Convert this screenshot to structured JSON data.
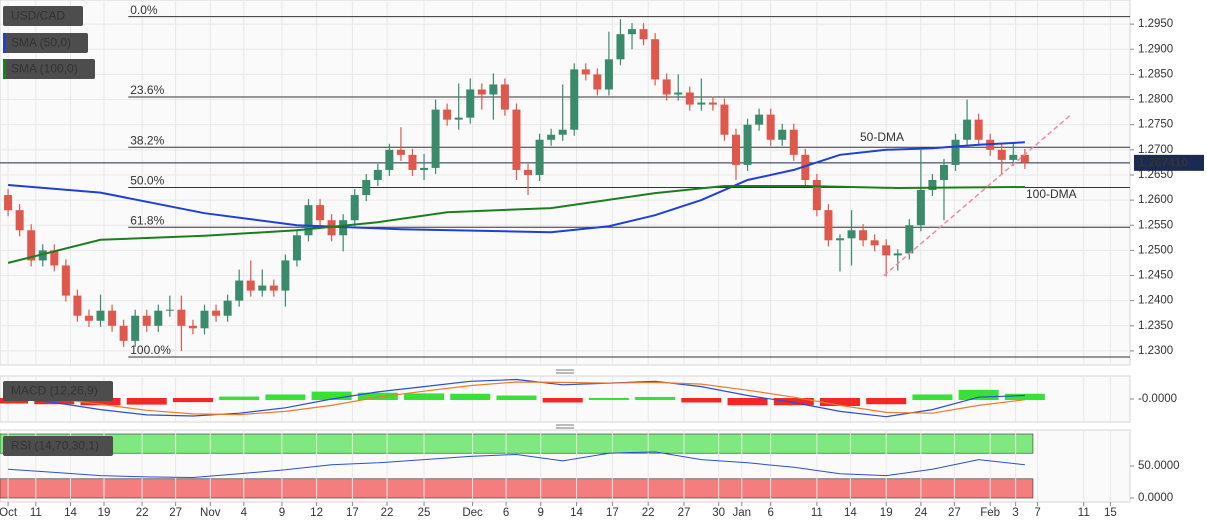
{
  "chart_data": [
    {
      "type": "candlestick",
      "title": "USD/CAD",
      "up_color": "#3a8a6c",
      "down_color": "#e0574c",
      "xlim": [
        -0.7,
        97.1
      ],
      "ylim": [
        1.2272,
        1.2998
      ],
      "yticks": [
        {
          "value": 1.23,
          "label": "1.2300"
        },
        {
          "value": 1.235,
          "label": "1.2350"
        },
        {
          "value": 1.24,
          "label": "1.2400"
        },
        {
          "value": 1.245,
          "label": "1.2450"
        },
        {
          "value": 1.25,
          "label": "1.2500"
        },
        {
          "value": 1.255,
          "label": "1.2550"
        },
        {
          "value": 1.26,
          "label": "1.2600"
        },
        {
          "value": 1.265,
          "label": "1.2650"
        },
        {
          "value": 1.27,
          "label": "1.2700"
        },
        {
          "value": 1.275,
          "label": "1.2750"
        },
        {
          "value": 1.28,
          "label": "1.2800"
        },
        {
          "value": 1.285,
          "label": "1.2850"
        },
        {
          "value": 1.29,
          "label": "1.2900"
        },
        {
          "value": 1.295,
          "label": "1.2950"
        }
      ],
      "ohlc": [
        [
          1.261,
          1.2622,
          1.2568,
          1.258
        ],
        [
          1.258,
          1.2592,
          1.2528,
          1.254
        ],
        [
          1.254,
          1.2552,
          1.2468,
          1.248
        ],
        [
          1.248,
          1.2512,
          1.2468,
          1.25
        ],
        [
          1.25,
          1.2512,
          1.2458,
          1.247
        ],
        [
          1.247,
          1.2482,
          1.2398,
          1.241
        ],
        [
          1.241,
          1.2422,
          1.2358,
          1.237
        ],
        [
          1.237,
          1.2382,
          1.2348,
          1.236
        ],
        [
          1.236,
          1.2412,
          1.2348,
          1.238
        ],
        [
          1.238,
          1.2392,
          1.2338,
          1.235
        ],
        [
          1.235,
          1.2362,
          1.2308,
          1.232
        ],
        [
          1.232,
          1.2382,
          1.2308,
          1.237
        ],
        [
          1.237,
          1.2382,
          1.2338,
          1.235
        ],
        [
          1.235,
          1.2392,
          1.2338,
          1.238
        ],
        [
          1.238,
          1.241,
          1.2368,
          1.2382
        ],
        [
          1.2382,
          1.241,
          1.23,
          1.235
        ],
        [
          1.235,
          1.2362,
          1.2333,
          1.2345
        ],
        [
          1.2345,
          1.2392,
          1.2333,
          1.238
        ],
        [
          1.238,
          1.2392,
          1.2358,
          1.237
        ],
        [
          1.237,
          1.2412,
          1.2358,
          1.24
        ],
        [
          1.24,
          1.2462,
          1.2388,
          1.244
        ],
        [
          1.244,
          1.248,
          1.2408,
          1.242
        ],
        [
          1.242,
          1.2462,
          1.2408,
          1.243
        ],
        [
          1.243,
          1.2442,
          1.2408,
          1.242
        ],
        [
          1.242,
          1.2492,
          1.2388,
          1.248
        ],
        [
          1.248,
          1.2542,
          1.2468,
          1.253
        ],
        [
          1.253,
          1.2602,
          1.2518,
          1.259
        ],
        [
          1.259,
          1.2602,
          1.2548,
          1.256
        ],
        [
          1.256,
          1.2572,
          1.2518,
          1.253
        ],
        [
          1.253,
          1.2572,
          1.2498,
          1.256
        ],
        [
          1.256,
          1.2622,
          1.2548,
          1.261
        ],
        [
          1.261,
          1.2652,
          1.2598,
          1.264
        ],
        [
          1.264,
          1.2672,
          1.2628,
          1.266
        ],
        [
          1.266,
          1.2712,
          1.2648,
          1.27
        ],
        [
          1.27,
          1.2745,
          1.2678,
          1.269
        ],
        [
          1.269,
          1.2702,
          1.2648,
          1.266
        ],
        [
          1.266,
          1.2692,
          1.264,
          1.2664
        ],
        [
          1.2664,
          1.28,
          1.2652,
          1.278
        ],
        [
          1.278,
          1.2792,
          1.2748,
          1.276
        ],
        [
          1.276,
          1.2832,
          1.274,
          1.2764
        ],
        [
          1.2764,
          1.2842,
          1.2752,
          1.282
        ],
        [
          1.282,
          1.2832,
          1.278,
          1.281
        ],
        [
          1.281,
          1.2852,
          1.276,
          1.283
        ],
        [
          1.283,
          1.2842,
          1.2768,
          1.278
        ],
        [
          1.278,
          1.2792,
          1.264,
          1.266
        ],
        [
          1.266,
          1.2672,
          1.261,
          1.265
        ],
        [
          1.265,
          1.2732,
          1.2638,
          1.272
        ],
        [
          1.272,
          1.2742,
          1.2708,
          1.273
        ],
        [
          1.273,
          1.283,
          1.2718,
          1.274
        ],
        [
          1.274,
          1.2872,
          1.2728,
          1.286
        ],
        [
          1.286,
          1.2872,
          1.2838,
          1.285
        ],
        [
          1.285,
          1.2862,
          1.2808,
          1.282
        ],
        [
          1.282,
          1.2935,
          1.2808,
          1.288
        ],
        [
          1.288,
          1.296,
          1.2868,
          1.293
        ],
        [
          1.293,
          1.2952,
          1.29,
          1.294
        ],
        [
          1.294,
          1.2952,
          1.2908,
          1.292
        ],
        [
          1.292,
          1.2932,
          1.2828,
          1.284
        ],
        [
          1.284,
          1.2852,
          1.2798,
          1.281
        ],
        [
          1.281,
          1.285,
          1.2798,
          1.2814
        ],
        [
          1.2814,
          1.2826,
          1.2778,
          1.279
        ],
        [
          1.279,
          1.2842,
          1.2778,
          1.2794
        ],
        [
          1.2794,
          1.2806,
          1.2778,
          1.279
        ],
        [
          1.279,
          1.2802,
          1.2718,
          1.273
        ],
        [
          1.273,
          1.2742,
          1.264,
          1.267
        ],
        [
          1.267,
          1.2762,
          1.2658,
          1.275
        ],
        [
          1.275,
          1.2782,
          1.2738,
          1.277
        ],
        [
          1.277,
          1.2782,
          1.2708,
          1.272
        ],
        [
          1.272,
          1.2752,
          1.2708,
          1.274
        ],
        [
          1.274,
          1.2752,
          1.2678,
          1.269
        ],
        [
          1.269,
          1.2702,
          1.2628,
          1.264
        ],
        [
          1.264,
          1.2652,
          1.2568,
          1.258
        ],
        [
          1.258,
          1.2592,
          1.2508,
          1.252
        ],
        [
          1.252,
          1.2532,
          1.2458,
          1.2524
        ],
        [
          1.2524,
          1.258,
          1.247,
          1.254
        ],
        [
          1.254,
          1.2552,
          1.2508,
          1.252
        ],
        [
          1.252,
          1.2532,
          1.2498,
          1.251
        ],
        [
          1.251,
          1.2522,
          1.2448,
          1.249
        ],
        [
          1.249,
          1.2502,
          1.246,
          1.2494
        ],
        [
          1.2494,
          1.2562,
          1.2482,
          1.255
        ],
        [
          1.255,
          1.27,
          1.2538,
          1.262
        ],
        [
          1.262,
          1.2652,
          1.2608,
          1.264
        ],
        [
          1.264,
          1.2682,
          1.256,
          1.267
        ],
        [
          1.267,
          1.2732,
          1.2658,
          1.272
        ],
        [
          1.272,
          1.28,
          1.2708,
          1.276
        ],
        [
          1.276,
          1.2772,
          1.2708,
          1.272
        ],
        [
          1.272,
          1.2732,
          1.2688,
          1.27
        ],
        [
          1.27,
          1.2712,
          1.265,
          1.268
        ],
        [
          1.268,
          1.2715,
          1.2668,
          1.269
        ],
        [
          1.269,
          1.2702,
          1.2662,
          1.26741
        ]
      ],
      "series": [
        {
          "name": "SMA (50,0)",
          "color": "#1f3fd6",
          "x": [
            0,
            8,
            17,
            25,
            34,
            43,
            47,
            52,
            56,
            60,
            64,
            68,
            72,
            76,
            80,
            84,
            88
          ],
          "values": [
            1.263,
            1.2615,
            1.2574,
            1.255,
            1.2542,
            1.2538,
            1.2536,
            1.2548,
            1.257,
            1.26,
            1.264,
            1.266,
            1.269,
            1.27,
            1.2703,
            1.271,
            1.2715
          ]
        },
        {
          "name": "SMA (100,0)",
          "color": "#1e7d1e",
          "x": [
            0,
            8,
            17,
            25,
            32,
            38,
            47,
            56,
            62,
            69,
            77,
            88
          ],
          "values": [
            1.2475,
            1.2521,
            1.2529,
            1.254,
            1.2556,
            1.2576,
            1.2584,
            1.2614,
            1.2628,
            1.2628,
            1.2624,
            1.2626
          ]
        }
      ],
      "fib_start": 10.4,
      "fib": [
        {
          "label": "0.0%",
          "value": 1.2965
        },
        {
          "label": "23.6%",
          "value": 1.2805
        },
        {
          "label": "38.2%",
          "value": 1.2705
        },
        {
          "label": "50.0%",
          "value": 1.2625
        },
        {
          "label": "61.8%",
          "value": 1.2546
        },
        {
          "label": "100.0%",
          "value": 1.2288
        }
      ],
      "trendline": {
        "color": "#f08aa8",
        "x": [
          75.8,
          92.0
        ],
        "values": [
          1.245,
          1.277
        ]
      },
      "annotations": [
        "50-DMA",
        "100-DMA"
      ],
      "last_price": {
        "value": 1.26741,
        "label": "1.267410"
      }
    },
    {
      "type": "macd",
      "title": "MACD (12,26,9)",
      "xlim": [
        -0.7,
        97.1
      ],
      "ylim": [
        -0.0065,
        0.0065
      ],
      "yticks": [
        {
          "value": 0,
          "label": "-0.0000"
        }
      ],
      "x": [
        0,
        4,
        8,
        12,
        16,
        20,
        24,
        28,
        32,
        36,
        40,
        44,
        48,
        52,
        56,
        60,
        64,
        68,
        72,
        76,
        80,
        84,
        88
      ],
      "lines": [
        {
          "color": "#2b4fd0",
          "values": [
            0.0002,
            -0.001,
            -0.003,
            -0.0045,
            -0.0048,
            -0.004,
            -0.0025,
            0.0,
            0.002,
            0.0035,
            0.005,
            0.0055,
            0.004,
            0.0045,
            0.005,
            0.0035,
            0.001,
            -0.001,
            -0.0035,
            -0.005,
            -0.003,
            0.0005,
            0.001
          ]
        },
        {
          "color": "#f07a2a",
          "values": [
            0.0012,
            0.0002,
            -0.0015,
            -0.0032,
            -0.0042,
            -0.0044,
            -0.0035,
            -0.0018,
            0.0005,
            0.0022,
            0.0038,
            0.0048,
            0.0047,
            0.0045,
            0.0047,
            0.0042,
            0.0025,
            0.0005,
            -0.0018,
            -0.0038,
            -0.004,
            -0.0018,
            -0.0002
          ]
        }
      ],
      "histogram": [
        -0.001,
        -0.0012,
        -0.0015,
        -0.0013,
        -0.0006,
        0.0004,
        0.001,
        0.0018,
        0.0015,
        0.0013,
        0.0012,
        0.0007,
        -0.0007,
        0.0,
        0.0003,
        -0.0007,
        -0.0015,
        -0.0015,
        -0.0017,
        -0.0012,
        0.001,
        0.0023,
        0.0012
      ],
      "up_color": "#22dd22",
      "down_color": "#ee1111"
    },
    {
      "type": "rsi",
      "title": "RSI (14,70,30,1)",
      "color": "#2b4fd0",
      "xlim": [
        -0.7,
        97.1
      ],
      "ylim": [
        -6.25,
        106.25
      ],
      "yticks": [
        {
          "value": 0,
          "label": "0.0000"
        },
        {
          "value": 50,
          "label": "50.0000"
        }
      ],
      "x": [
        0,
        4,
        8,
        12,
        16,
        20,
        24,
        28,
        32,
        36,
        40,
        44,
        48,
        52,
        56,
        60,
        64,
        68,
        72,
        76,
        80,
        84,
        88
      ],
      "values": [
        45,
        40,
        35,
        33,
        32,
        38,
        44,
        52,
        55,
        60,
        65,
        68,
        58,
        70,
        72,
        60,
        55,
        48,
        38,
        35,
        45,
        60,
        52
      ],
      "bands": [
        {
          "range": [
            70,
            100
          ],
          "color": "#80e880"
        },
        {
          "range": [
            0,
            30
          ],
          "color": "#f47e7e"
        }
      ],
      "band_end": 88.7,
      "xticks": [
        {
          "value": 0.0,
          "label": "Oct"
        },
        {
          "value": 2.4,
          "label": "11"
        },
        {
          "value": 5.4,
          "label": "14"
        },
        {
          "value": 8.3,
          "label": "19"
        },
        {
          "value": 11.6,
          "label": "22"
        },
        {
          "value": 14.5,
          "label": "27"
        },
        {
          "value": 17.5,
          "label": "Nov"
        },
        {
          "value": 20.4,
          "label": "4"
        },
        {
          "value": 23.7,
          "label": "9"
        },
        {
          "value": 26.7,
          "label": "12"
        },
        {
          "value": 29.8,
          "label": "17"
        },
        {
          "value": 32.8,
          "label": "22"
        },
        {
          "value": 36.0,
          "label": "25"
        },
        {
          "value": 40.2,
          "label": "Dec"
        },
        {
          "value": 43.1,
          "label": "6"
        },
        {
          "value": 46.1,
          "label": "9"
        },
        {
          "value": 49.2,
          "label": "14"
        },
        {
          "value": 52.3,
          "label": "17"
        },
        {
          "value": 55.4,
          "label": "22"
        },
        {
          "value": 58.5,
          "label": "27"
        },
        {
          "value": 61.5,
          "label": "30"
        },
        {
          "value": 63.5,
          "label": "Jan"
        },
        {
          "value": 66.0,
          "label": "6"
        },
        {
          "value": 70.0,
          "label": "11"
        },
        {
          "value": 72.9,
          "label": "14"
        },
        {
          "value": 76.0,
          "label": "19"
        },
        {
          "value": 79.0,
          "label": "24"
        },
        {
          "value": 81.9,
          "label": "27"
        },
        {
          "value": 85.0,
          "label": "Feb"
        },
        {
          "value": 87.2,
          "label": "3"
        },
        {
          "value": 89.1,
          "label": "7"
        },
        {
          "value": 93.1,
          "label": "11"
        },
        {
          "value": 95.4,
          "label": "15"
        }
      ]
    }
  ]
}
